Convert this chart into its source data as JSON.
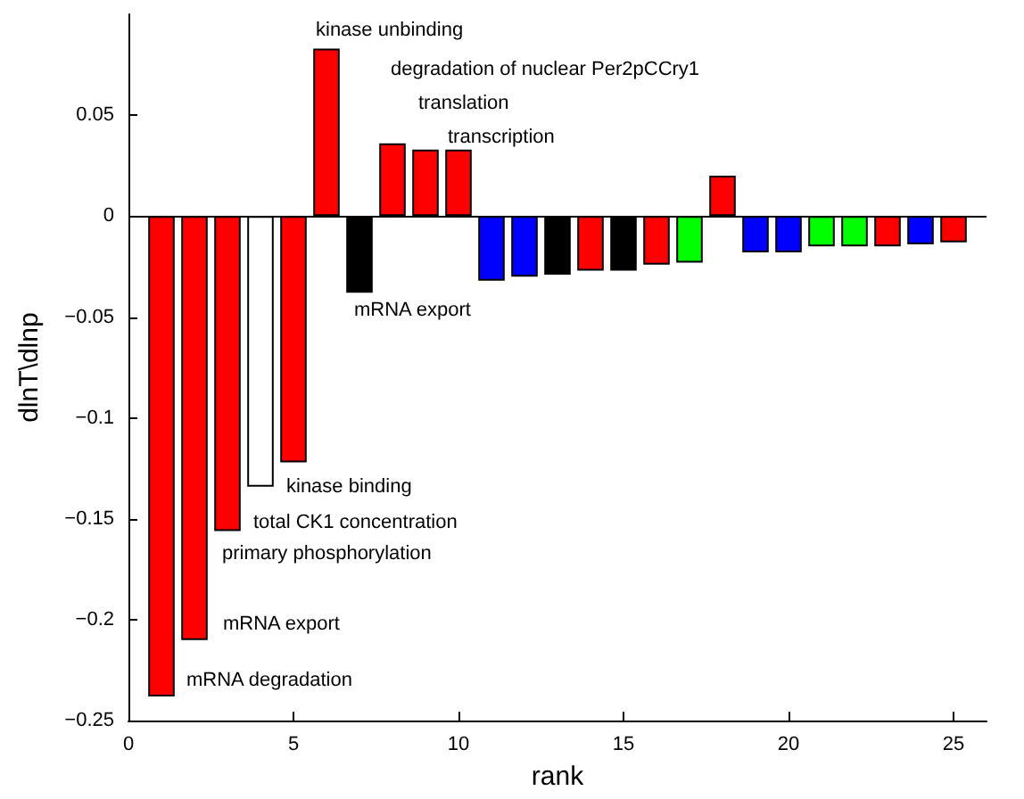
{
  "chart_data": {
    "type": "bar",
    "xlabel": "rank",
    "ylabel": "dlnT\\dlnp",
    "x": [
      1,
      2,
      3,
      4,
      5,
      6,
      7,
      8,
      9,
      10,
      11,
      12,
      13,
      14,
      15,
      16,
      17,
      18,
      19,
      20,
      21,
      22,
      23,
      24,
      25
    ],
    "values": [
      -0.238,
      -0.21,
      -0.156,
      -0.134,
      -0.122,
      0.083,
      -0.038,
      0.036,
      0.033,
      0.033,
      -0.032,
      -0.03,
      -0.029,
      -0.027,
      -0.027,
      -0.024,
      -0.023,
      0.02,
      -0.018,
      -0.018,
      -0.015,
      -0.015,
      -0.015,
      -0.014,
      -0.013
    ],
    "colors": [
      "#ff0000",
      "#ff0000",
      "#ff0000",
      "#ffffff",
      "#ff0000",
      "#ff0000",
      "#000000",
      "#ff0000",
      "#ff0000",
      "#ff0000",
      "#0000ff",
      "#0000ff",
      "#000000",
      "#ff0000",
      "#000000",
      "#ff0000",
      "#00ff00",
      "#ff0000",
      "#0000ff",
      "#0000ff",
      "#00ff00",
      "#00ff00",
      "#ff0000",
      "#0000ff",
      "#ff0000"
    ],
    "xlim": [
      0,
      26
    ],
    "xticks": [
      0,
      5,
      10,
      15,
      20,
      25
    ],
    "ylim": [
      -0.25,
      0.1
    ],
    "yticks": [
      -0.25,
      -0.2,
      -0.15,
      -0.1,
      -0.05,
      0,
      0.05
    ],
    "ref_lines": [
      {
        "axis": "y",
        "value": 0,
        "color": "#000000"
      }
    ],
    "annotations": [
      {
        "text": "mRNA degradation",
        "x": 1,
        "y": -0.238
      },
      {
        "text": "mRNA export",
        "x": 2,
        "y": -0.21
      },
      {
        "text": "primary phosphorylation",
        "x": 3,
        "y": -0.156
      },
      {
        "text": "total CK1 concentration",
        "x": 4,
        "y": -0.134
      },
      {
        "text": "kinase binding",
        "x": 5,
        "y": -0.122
      },
      {
        "text": "mRNA export",
        "x": 7,
        "y": -0.038
      },
      {
        "text": "kinase unbinding",
        "x": 6,
        "y": 0.083
      },
      "degradation of nuclear Per2pCCry1",
      {
        "text": "translation",
        "x": 9,
        "y": 0.033
      },
      {
        "text": "transcription",
        "x": 10,
        "y": 0.033
      }
    ]
  }
}
